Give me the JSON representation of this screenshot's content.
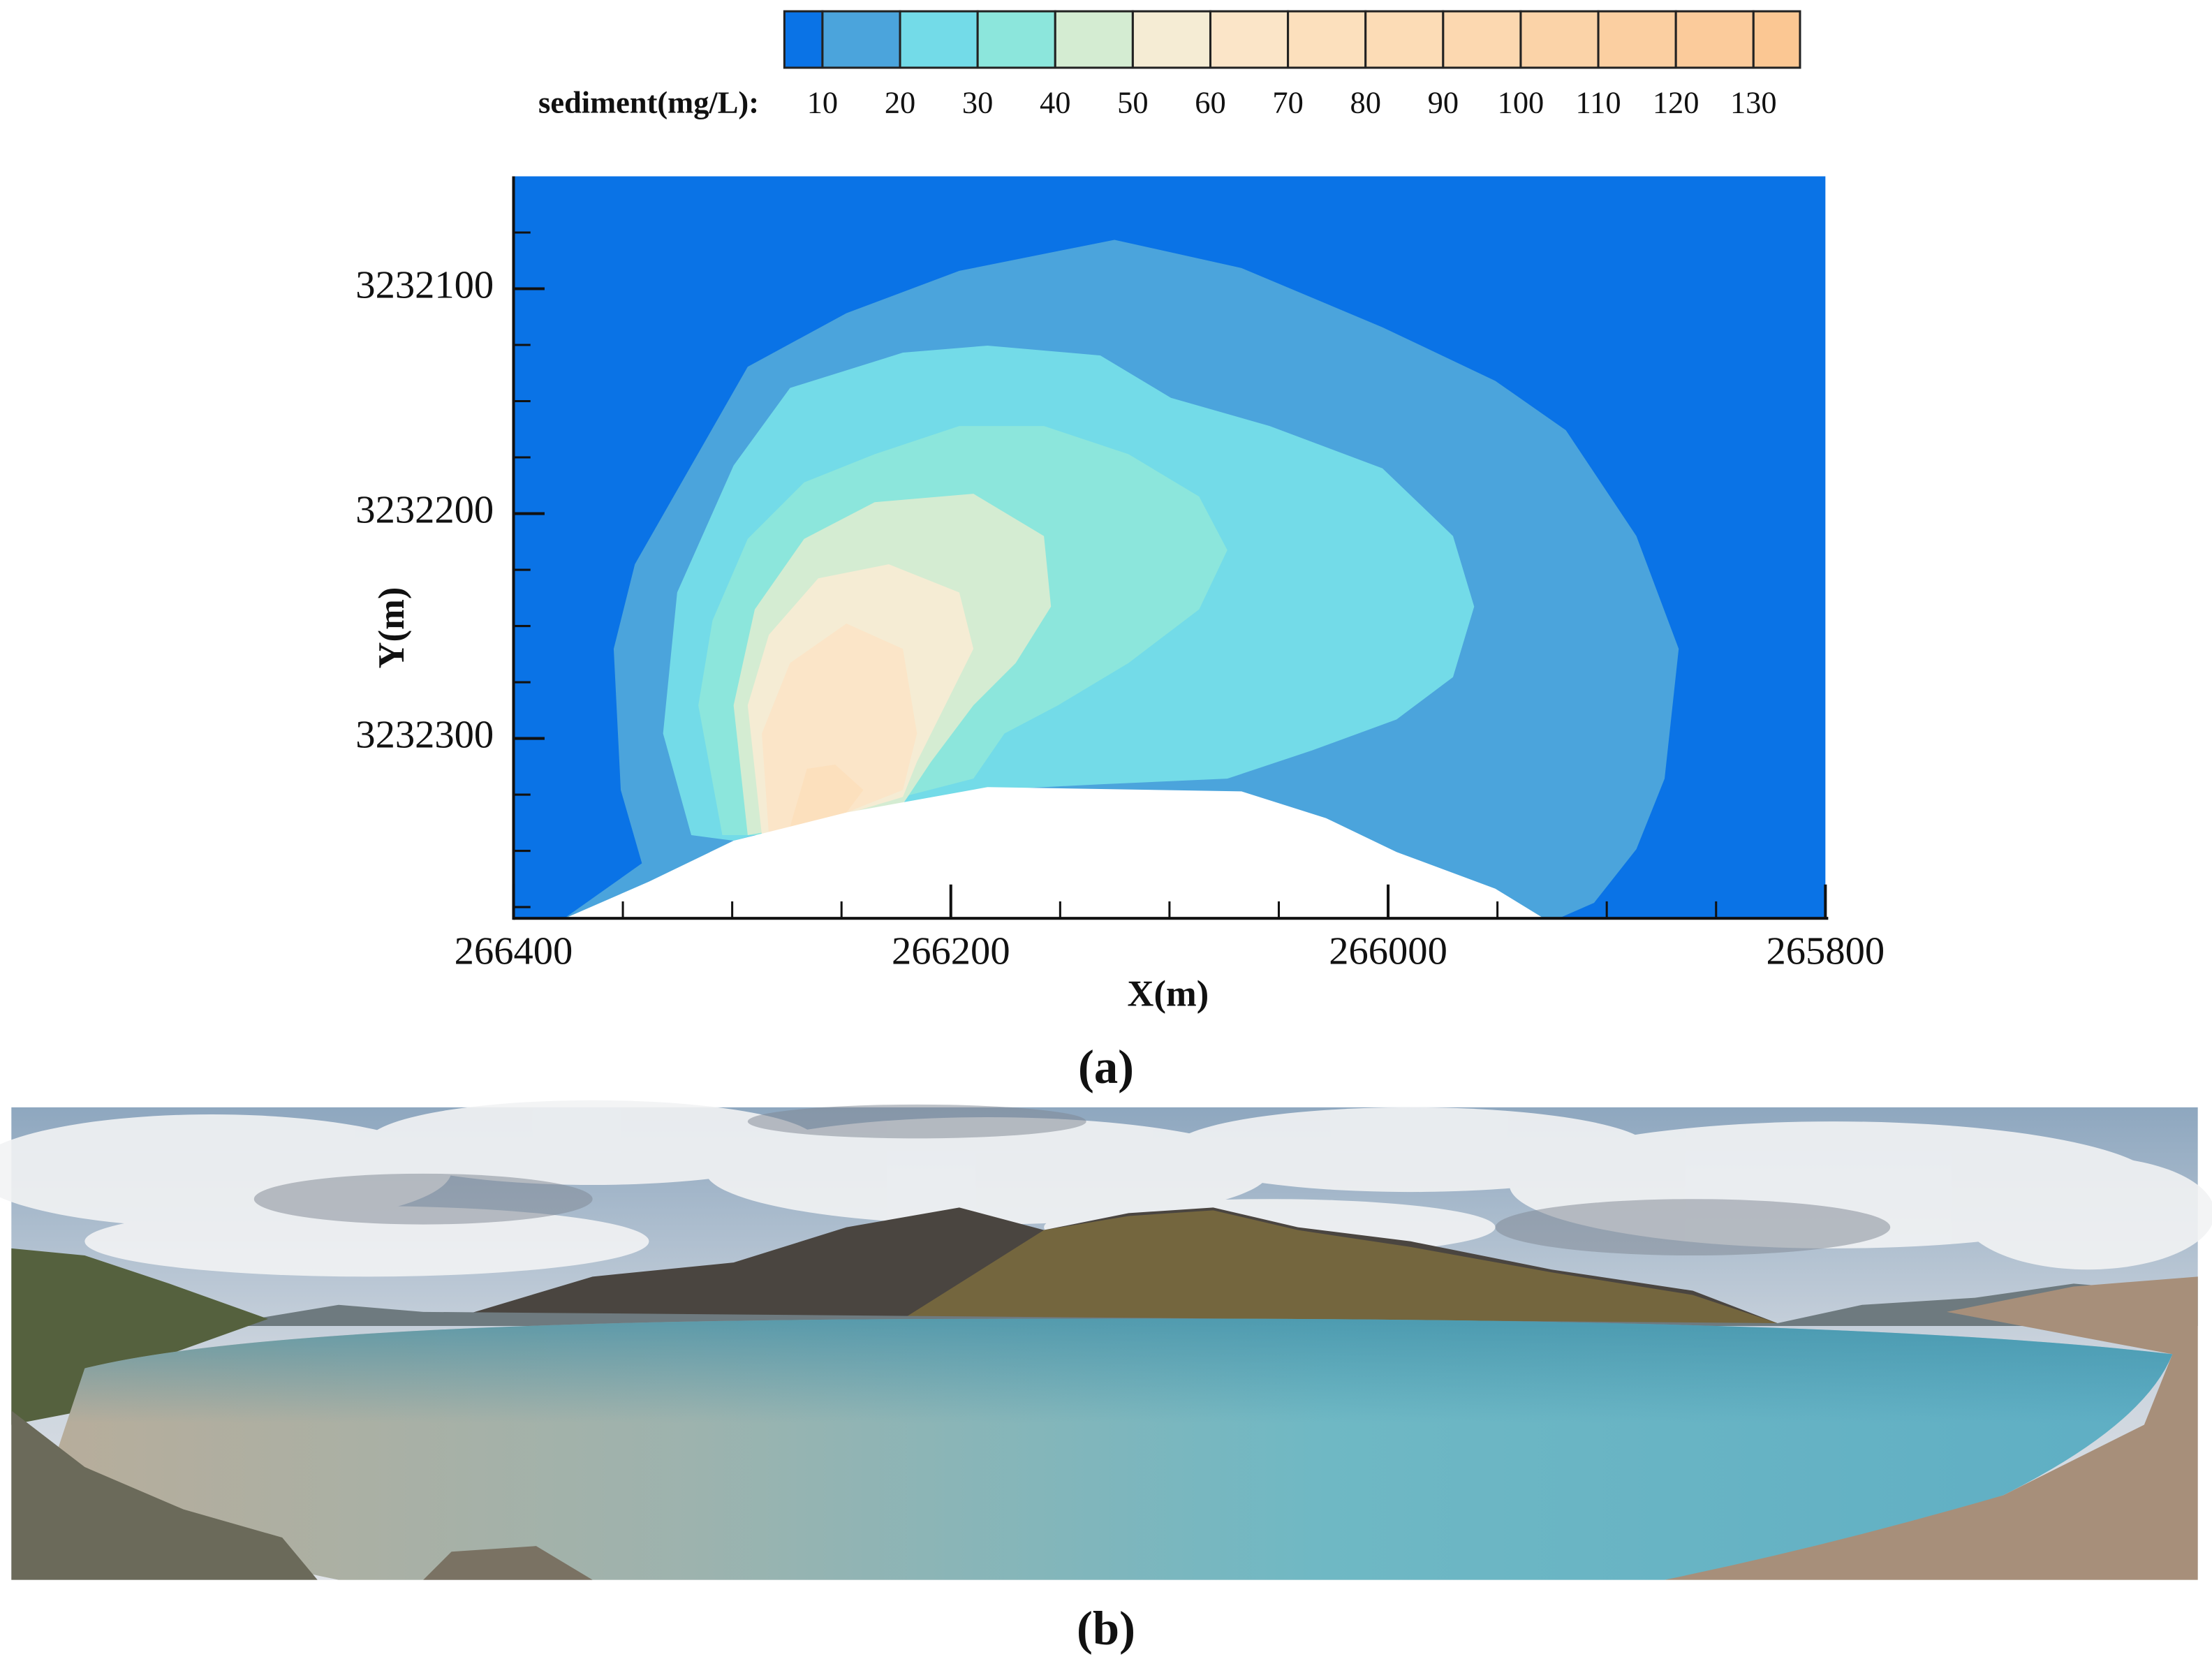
{
  "figure_a": {
    "legend": {
      "title": "sediment(mg/L):",
      "levels": [
        10,
        20,
        30,
        40,
        50,
        60,
        70,
        80,
        90,
        100,
        110,
        120,
        130
      ],
      "colors": [
        "#0a73e6",
        "#4ba4dc",
        "#73dbe8",
        "#8ce6dc",
        "#d4ecd2",
        "#f5ecd4",
        "#fbe5c8",
        "#fce0bd",
        "#fcdcb6",
        "#fcd8b0",
        "#fbd3a8",
        "#fbcfa1",
        "#fbcb9b",
        "#fbc793"
      ]
    },
    "xlabel": "X(m)",
    "ylabel": "Y(m)",
    "xlim": [
      266400,
      265800
    ],
    "xticks": [
      266400,
      266200,
      266000,
      265800
    ],
    "xminorticks": [
      266350,
      266300,
      266250,
      266150,
      266100,
      266050,
      265950,
      265900,
      265850
    ],
    "ylim": [
      3232050,
      3232380
    ],
    "yticks": [
      3232100,
      3232200,
      3232300
    ],
    "yminorticks": [
      3232075,
      3232125,
      3232150,
      3232175,
      3232225,
      3232250,
      3232275,
      3232325,
      3232350,
      3232375
    ],
    "caption": "(a)"
  },
  "figure_b": {
    "caption": "(b)"
  }
}
